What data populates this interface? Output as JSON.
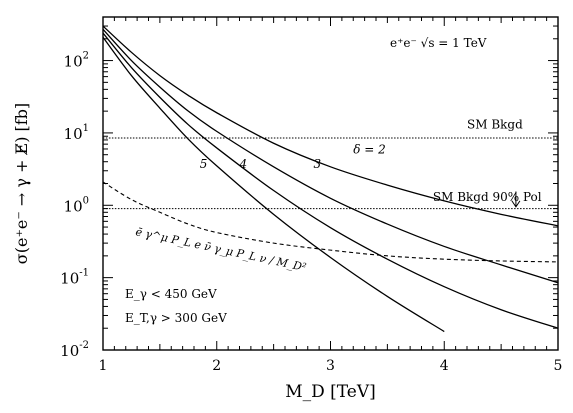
{
  "chart_data": {
    "type": "line",
    "x_scale": "linear",
    "y_scale": "log",
    "xlim": [
      1,
      5
    ],
    "ylim": [
      0.01,
      400
    ],
    "xlabel": "M_D [TeV]",
    "ylabel": "σ(e⁺e⁻ → γ + E̸) [fb]",
    "x_ticks": [
      {
        "v": 1,
        "label": "1"
      },
      {
        "v": 2,
        "label": "2"
      },
      {
        "v": 3,
        "label": "3"
      },
      {
        "v": 4,
        "label": "4"
      },
      {
        "v": 5,
        "label": "5"
      }
    ],
    "y_ticks": [
      {
        "v": 0.01,
        "base": "10",
        "exp": "-2"
      },
      {
        "v": 0.1,
        "base": "10",
        "exp": "-1"
      },
      {
        "v": 1,
        "base": "10",
        "exp": "0"
      },
      {
        "v": 10,
        "base": "10",
        "exp": "1"
      },
      {
        "v": 100,
        "base": "10",
        "exp": "2"
      }
    ],
    "annotations": {
      "process": "e⁺e⁻  √s = 1 TeV",
      "cut_energy": "E_γ < 450 GeV",
      "cut_transverse": "E_T,γ > 300 GeV",
      "operator": "ē γ^μ P_L e ν̄ γ_μ P_L ν / M_D²"
    },
    "series": [
      {
        "name": "δ = 2",
        "style": "solid",
        "label_at": [
          3.2,
          5.2
        ],
        "x": [
          1.0,
          1.25,
          1.5,
          1.75,
          2.0,
          2.5,
          3.0,
          3.5,
          4.0,
          4.5,
          5.0
        ],
        "y": [
          300,
          130,
          62,
          33,
          19,
          7.2,
          3.4,
          1.9,
          1.15,
          0.75,
          0.52
        ]
      },
      {
        "name": "3",
        "style": "solid",
        "label_at": [
          2.85,
          3.3
        ],
        "x": [
          1.0,
          1.25,
          1.5,
          1.75,
          2.0,
          2.5,
          3.0,
          3.5,
          4.0,
          4.5,
          5.0
        ],
        "y": [
          270,
          100,
          43,
          20,
          10.5,
          3.4,
          1.25,
          0.55,
          0.27,
          0.15,
          0.085
        ]
      },
      {
        "name": "4",
        "style": "solid",
        "label_at": [
          2.2,
          3.3
        ],
        "x": [
          1.0,
          1.25,
          1.5,
          1.75,
          2.0,
          2.5,
          3.0,
          3.5,
          4.0,
          4.5,
          5.0
        ],
        "y": [
          240,
          80,
          31,
          13,
          6.2,
          1.6,
          0.49,
          0.18,
          0.075,
          0.036,
          0.02
        ]
      },
      {
        "name": "5",
        "style": "solid",
        "label_at": [
          1.85,
          3.3
        ],
        "x": [
          1.0,
          1.25,
          1.5,
          1.75,
          2.0,
          2.5,
          3.0,
          3.5,
          4.0
        ],
        "y": [
          210,
          62,
          22,
          8.2,
          3.5,
          0.75,
          0.19,
          0.055,
          0.018
        ]
      },
      {
        "name": "SM Bkgd",
        "style": "dotted",
        "label_at": [
          4.2,
          11.5
        ],
        "x": [
          1.0,
          5.0
        ],
        "y": [
          8.5,
          8.5
        ]
      },
      {
        "name": "SM Bkgd 90% Pol",
        "style": "dotted",
        "label_at": [
          3.9,
          1.15
        ],
        "x": [
          1.0,
          5.0
        ],
        "y": [
          0.9,
          0.9
        ]
      },
      {
        "name": "operator",
        "style": "dashed",
        "x": [
          1.0,
          1.25,
          1.5,
          1.75,
          2.0,
          2.5,
          3.0,
          3.5,
          4.0,
          4.5,
          5.0
        ],
        "y": [
          2.1,
          1.2,
          0.8,
          0.55,
          0.42,
          0.3,
          0.24,
          0.2,
          0.18,
          0.17,
          0.165
        ]
      }
    ],
    "arrow": {
      "x": 4.63,
      "y_from": 1.55,
      "y_to": 0.95
    }
  }
}
